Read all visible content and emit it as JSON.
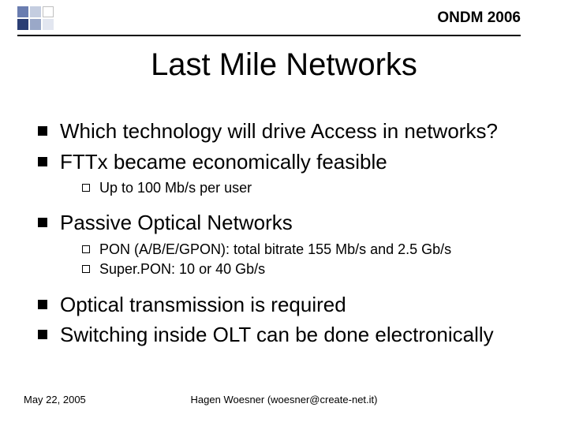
{
  "header": {
    "label": "ONDM 2006",
    "squares": [
      {
        "bg": "#6a7db0"
      },
      {
        "bg": "#c4cde0"
      },
      {
        "bg": "#ffffff",
        "border": "#c0c0c0"
      },
      {
        "bg": "#2b3e74"
      },
      {
        "bg": "#9aa8c8"
      },
      {
        "bg": "#e2e6f0"
      }
    ],
    "rule_color": "#000000"
  },
  "title": "Last Mile Networks",
  "bullets": [
    {
      "level": 1,
      "text": "Which technology will drive Access in networks?"
    },
    {
      "level": 1,
      "text": "FTTx became economically feasible"
    },
    {
      "level": 2,
      "text": "Up to 100 Mb/s per user"
    },
    {
      "level": 1,
      "text": "Passive Optical Networks"
    },
    {
      "level": 2,
      "text": "PON (A/B/E/GPON): total bitrate 155 Mb/s and 2.5 Gb/s"
    },
    {
      "level": 2,
      "text": "Super.PON: 10 or 40 Gb/s"
    },
    {
      "level": 1,
      "text": "Optical transmission is required"
    },
    {
      "level": 1,
      "text": "Switching inside OLT can be done electronically"
    }
  ],
  "footer": {
    "date": "May 22, 2005",
    "author": "Hagen Woesner (woesner@create-net.it)"
  },
  "style": {
    "title_fontsize": 40,
    "lvl1_fontsize": 26,
    "lvl2_fontsize": 18,
    "footer_fontsize": 13,
    "background": "#ffffff",
    "text_color": "#000000"
  }
}
